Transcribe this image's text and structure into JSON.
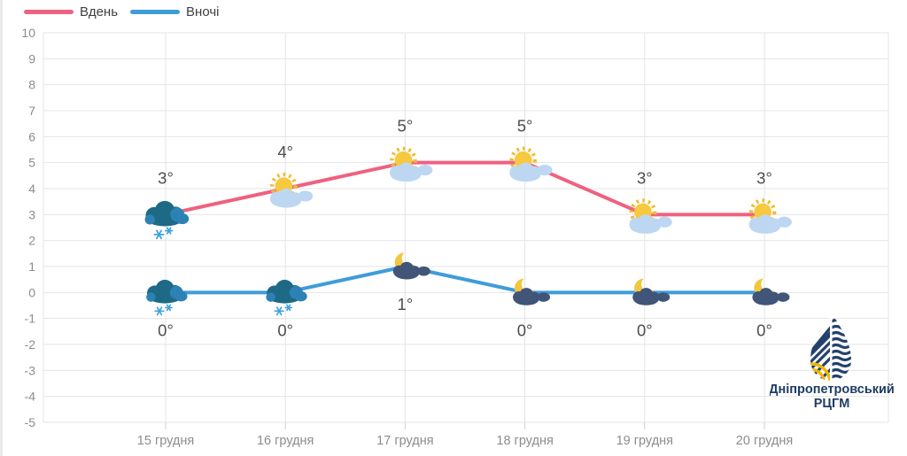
{
  "legend": {
    "items": [
      {
        "label": "Вдень",
        "color": "#ef6180"
      },
      {
        "label": "Вночі",
        "color": "#3f9cd9"
      }
    ]
  },
  "chart_data": {
    "type": "line",
    "categories": [
      "15 грудня",
      "16 грудня",
      "17 грудня",
      "18 грудня",
      "19 грудня",
      "20 грудня"
    ],
    "series": [
      {
        "name": "Вдень",
        "color": "#ef6180",
        "values": [
          3,
          4,
          5,
          5,
          3,
          3
        ],
        "labels": [
          "3°",
          "4°",
          "5°",
          "5°",
          "3°",
          "3°"
        ],
        "label_position": "above",
        "icons": [
          "snow-cloud",
          "sun-cloud",
          "sun-cloud",
          "sun-cloud",
          "sun-cloud",
          "sun-cloud"
        ]
      },
      {
        "name": "Вночі",
        "color": "#3f9cd9",
        "values": [
          0,
          0,
          1,
          0,
          0,
          0
        ],
        "labels": [
          "0°",
          "0°",
          "1°",
          "0°",
          "0°",
          "0°"
        ],
        "label_position": "below",
        "icons": [
          "snow-cloud",
          "snow-cloud",
          "moon-cloud",
          "moon-cloud",
          "moon-cloud",
          "moon-cloud"
        ]
      }
    ],
    "ylim": [
      -5,
      10
    ],
    "yticks": [
      "10",
      "9",
      "8",
      "7",
      "6",
      "5",
      "4",
      "3",
      "2",
      "1",
      "0",
      "-1",
      "-2",
      "-3",
      "-4",
      "-5"
    ],
    "grid": true,
    "legend_position": "top-left",
    "title": "",
    "xlabel": "",
    "ylabel": ""
  },
  "logo": {
    "line1": "Дніпропетровський",
    "line2": "РЦГМ",
    "navy": "#24416b",
    "yellow": "#f2b705"
  }
}
